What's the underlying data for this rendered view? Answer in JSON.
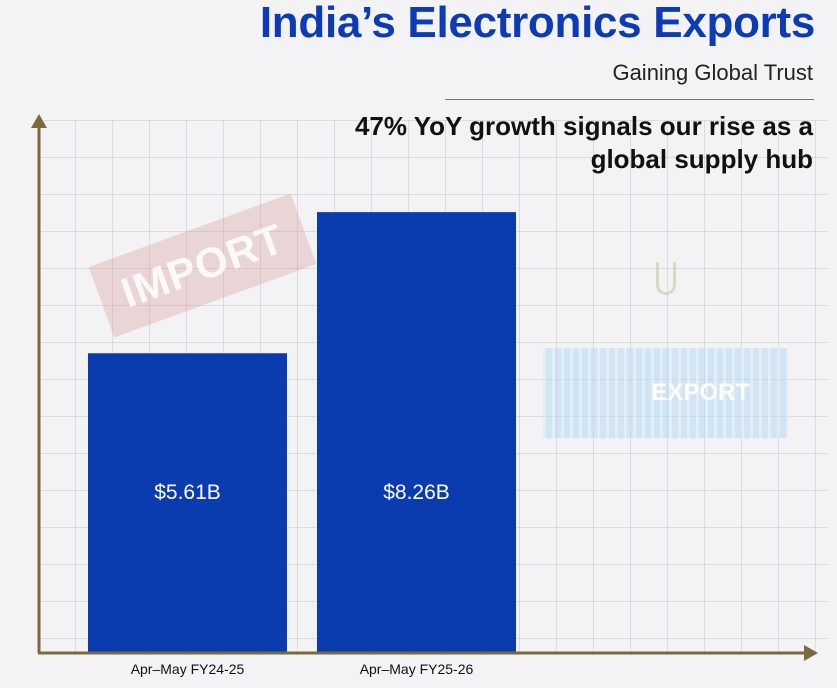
{
  "header": {
    "title": "India’s Electronics Exports",
    "subtitle": "Gaining Global Trust",
    "headline_line1": "47% YoY growth signals our rise as a",
    "headline_line2": "global supply hub"
  },
  "decor": {
    "import_tag_text": "IMPORT",
    "container_text": "EXPORT"
  },
  "colors": {
    "bar": "#0a3cb0",
    "axis": "#7a6a3e",
    "title": "#0c3bb5"
  },
  "chart_data": {
    "type": "bar",
    "title": "India’s Electronics Exports",
    "subtitle": "Gaining Global Trust",
    "categories": [
      "Apr–May FY24-25",
      "Apr–May FY25-26"
    ],
    "values": [
      5.61,
      8.26
    ],
    "value_labels": [
      "$5.61B",
      "$8.26B"
    ],
    "xlabel": "",
    "ylabel": "",
    "ylim": [
      0,
      9.99
    ],
    "grid": true,
    "legend": "none"
  }
}
